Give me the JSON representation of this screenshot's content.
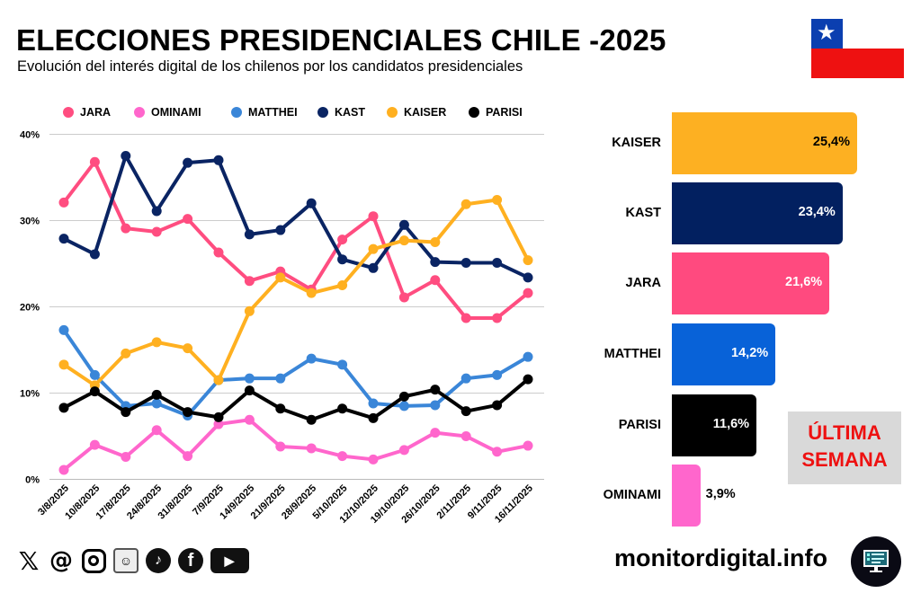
{
  "header": {
    "title": "ELECCIONES PRESIDENCIALES CHILE -2025",
    "subtitle": "Evolución del interés digital de los chilenos por los candidatos presidenciales"
  },
  "footer": {
    "site": "monitordigital.info",
    "social_icons": [
      "x-icon",
      "threads-icon",
      "instagram-icon",
      "reddit-icon",
      "tiktok-icon",
      "facebook-icon",
      "youtube-icon"
    ]
  },
  "badge": {
    "line1": "ÚLTIMA",
    "line2": "SEMANA"
  },
  "chart_data": [
    {
      "type": "line",
      "title": "",
      "ylim": [
        0,
        40
      ],
      "yticks": [
        "0%",
        "10%",
        "20%",
        "30%",
        "40%"
      ],
      "grid": true,
      "legend_position": "top",
      "x": [
        "3/8/2025",
        "10/8/2025",
        "17/8/2025",
        "24/8/2025",
        "31/8/2025",
        "7/9/2025",
        "14/9/2025",
        "21/9/2025",
        "28/9/2025",
        "5/10/2025",
        "12/10/2025",
        "19/10/2025",
        "26/10/2025",
        "2/11/2025",
        "9/11/2025",
        "16/11/2025"
      ],
      "series": [
        {
          "name": "JARA",
          "color": "#ff4d80",
          "values": [
            32.1,
            36.8,
            29.1,
            28.7,
            30.2,
            26.3,
            23.0,
            24.1,
            22.0,
            27.8,
            30.5,
            21.1,
            23.1,
            18.7,
            18.7,
            21.6
          ]
        },
        {
          "name": "OMINAMI",
          "color": "#ff66cc",
          "values": [
            1.1,
            4.0,
            2.6,
            5.7,
            2.7,
            6.4,
            6.9,
            3.8,
            3.6,
            2.7,
            2.3,
            3.4,
            5.4,
            5.0,
            3.2,
            3.9
          ]
        },
        {
          "name": "MATTHEI",
          "color": "#3a86d8",
          "values": [
            17.3,
            12.1,
            8.5,
            8.8,
            7.4,
            11.5,
            11.7,
            11.7,
            14.0,
            13.3,
            8.8,
            8.5,
            8.6,
            11.7,
            12.1,
            14.2
          ]
        },
        {
          "name": "KAST",
          "color": "#0a2463",
          "values": [
            27.9,
            26.1,
            37.5,
            31.1,
            36.7,
            37.0,
            28.4,
            28.9,
            32.0,
            25.5,
            24.5,
            29.5,
            25.2,
            25.1,
            25.1,
            23.4
          ]
        },
        {
          "name": "KAISER",
          "color": "#ffb020",
          "values": [
            13.3,
            10.9,
            14.6,
            15.9,
            15.2,
            11.5,
            19.5,
            23.4,
            21.6,
            22.5,
            26.7,
            27.7,
            27.5,
            31.9,
            32.4,
            25.4
          ]
        },
        {
          "name": "PARISI",
          "color": "#000000",
          "values": [
            8.3,
            10.2,
            7.8,
            9.8,
            7.8,
            7.2,
            10.3,
            8.2,
            6.9,
            8.2,
            7.1,
            9.6,
            10.4,
            7.9,
            8.6,
            11.6
          ]
        }
      ]
    },
    {
      "type": "bar",
      "orientation": "horizontal",
      "title": "ÚLTIMA SEMANA",
      "categories": [
        "KAISER",
        "KAST",
        "JARA",
        "MATTHEI",
        "PARISI",
        "OMINAMI"
      ],
      "values": [
        25.4,
        23.4,
        21.6,
        14.2,
        11.6,
        3.9
      ],
      "value_labels": [
        "25,4%",
        "23,4%",
        "21,6%",
        "14,2%",
        "11,6%",
        "3,9%"
      ],
      "colors": [
        "#fdb022",
        "#022060",
        "#ff4a7f",
        "#0862d8",
        "#000000",
        "#ff66cc"
      ],
      "label_colors": [
        "#000000",
        "#ffffff",
        "#ffffff",
        "#ffffff",
        "#ffffff",
        "#000000"
      ]
    }
  ]
}
